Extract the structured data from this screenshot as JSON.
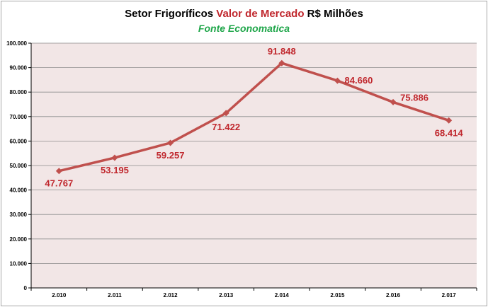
{
  "chart_data": {
    "type": "line",
    "title_parts": [
      {
        "text": "Setor Frigoríficos ",
        "accent": false
      },
      {
        "text": "Valor de Mercado",
        "accent": true
      },
      {
        "text": " R$ Milhões",
        "accent": false
      }
    ],
    "subtitle": "Fonte Economatica",
    "categories": [
      "2.010",
      "2.011",
      "2.012",
      "2.013",
      "2.014",
      "2.015",
      "2.016",
      "2.017"
    ],
    "series": [
      {
        "values": [
          47767,
          53195,
          59257,
          71422,
          91848,
          84660,
          75886,
          68414
        ],
        "labels": [
          "47.767",
          "53.195",
          "59.257",
          "71.422",
          "91.848",
          "84.660",
          "75.886",
          "68.414"
        ]
      }
    ],
    "ylim": [
      0,
      100000
    ],
    "yticks": [
      0,
      10000,
      20000,
      30000,
      40000,
      50000,
      60000,
      70000,
      80000,
      90000,
      100000
    ],
    "ytick_labels": [
      "0",
      "10.000",
      "20.000",
      "30.000",
      "40.000",
      "50.000",
      "60.000",
      "70.000",
      "80.000",
      "90.000",
      "100.000"
    ],
    "grid": true,
    "legend": "none",
    "colors": {
      "line": "#c0504d",
      "label": "#c0272d",
      "plot_bg": "#f2e6e6",
      "grid": "#8c8c8c",
      "title_accent": "#c0272d",
      "subtitle": "#1fa64a"
    }
  }
}
